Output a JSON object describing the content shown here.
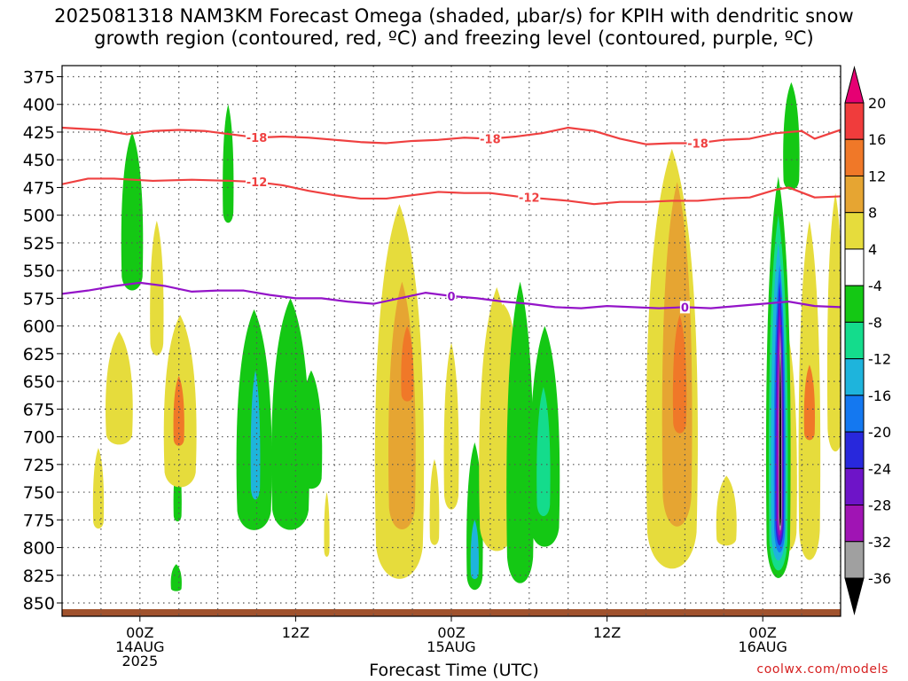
{
  "chart_data": {
    "type": "heatmap",
    "title_line1": "2025081318 NAM3KM Forecast Omega (shaded, μbar/s) for KPIH with dendritic snow",
    "title_line2": "growth region (contoured, red, ºC) and freezing level (contoured, purple, ºC)",
    "xlabel": "Forecast Time (UTC)",
    "credit": "coolwx.com/models",
    "y_ticks": [
      "375",
      "400",
      "425",
      "450",
      "475",
      "500",
      "525",
      "550",
      "575",
      "600",
      "625",
      "650",
      "675",
      "700",
      "725",
      "750",
      "775",
      "800",
      "825",
      "850"
    ],
    "ylim": [
      365,
      862
    ],
    "y_axis": "pressure (hPa)",
    "x_range_hours": [
      -6,
      54
    ],
    "x_ticks": [
      {
        "hour": 0,
        "lines": [
          "00Z",
          "14AUG",
          "2025"
        ]
      },
      {
        "hour": 12,
        "lines": [
          "12Z"
        ]
      },
      {
        "hour": 24,
        "lines": [
          "00Z",
          "15AUG"
        ]
      },
      {
        "hour": 36,
        "lines": [
          "12Z"
        ]
      },
      {
        "hour": 48,
        "lines": [
          "00Z",
          "16AUG"
        ]
      }
    ],
    "colorbar": {
      "labels": [
        "20",
        "16",
        "12",
        "8",
        "4",
        "-4",
        "-8",
        "-12",
        "-16",
        "-20",
        "-24",
        "-28",
        "-32",
        "-36"
      ],
      "colors": [
        "#e60073",
        "#f03c3c",
        "#f07828",
        "#e6a532",
        "#e6dc3c",
        "#ffffff",
        "#14c814",
        "#14dc8c",
        "#1eb4dc",
        "#1478f0",
        "#2828dc",
        "#6e14c8",
        "#a014b4",
        "#a0a0a0",
        "#000000"
      ]
    },
    "contours": {
      "minus18": {
        "label": "-18",
        "color": "#ef4040",
        "points": [
          [
            -6,
            421
          ],
          [
            -3,
            423
          ],
          [
            -1,
            427
          ],
          [
            1,
            424
          ],
          [
            3,
            423
          ],
          [
            5,
            424
          ],
          [
            7,
            427
          ],
          [
            9,
            430
          ],
          [
            11,
            429
          ],
          [
            13,
            430
          ],
          [
            15,
            432
          ],
          [
            17,
            434
          ],
          [
            19,
            435
          ],
          [
            21,
            433
          ],
          [
            23,
            432
          ],
          [
            25,
            430
          ],
          [
            27,
            431
          ],
          [
            29,
            429
          ],
          [
            31,
            426
          ],
          [
            33,
            421
          ],
          [
            35,
            424
          ],
          [
            37,
            431
          ],
          [
            39,
            436
          ],
          [
            41,
            435
          ],
          [
            43,
            435
          ],
          [
            45,
            432
          ],
          [
            47,
            431
          ],
          [
            49,
            426
          ],
          [
            51,
            424
          ],
          [
            52,
            431
          ],
          [
            54,
            423
          ]
        ],
        "label_hours": [
          9,
          27,
          43
        ]
      },
      "minus12": {
        "label": "-12",
        "color": "#ef4040",
        "points": [
          [
            -6,
            472
          ],
          [
            -4,
            467
          ],
          [
            -2,
            467
          ],
          [
            1,
            469
          ],
          [
            4,
            468
          ],
          [
            7,
            469
          ],
          [
            9,
            470
          ],
          [
            11,
            473
          ],
          [
            13,
            478
          ],
          [
            15,
            482
          ],
          [
            17,
            485
          ],
          [
            19,
            485
          ],
          [
            21,
            482
          ],
          [
            23,
            479
          ],
          [
            25,
            480
          ],
          [
            27,
            480
          ],
          [
            29,
            483
          ],
          [
            31,
            485
          ],
          [
            33,
            487
          ],
          [
            35,
            490
          ],
          [
            37,
            488
          ],
          [
            39,
            488
          ],
          [
            41,
            487
          ],
          [
            43,
            487
          ],
          [
            45,
            485
          ],
          [
            47,
            484
          ],
          [
            49,
            477
          ],
          [
            50,
            475
          ],
          [
            52,
            484
          ],
          [
            54,
            483
          ]
        ],
        "label_hours": [
          9,
          30
        ]
      },
      "freezing0": {
        "label": "0",
        "color": "#9414c8",
        "points": [
          [
            -6,
            571
          ],
          [
            -4,
            568
          ],
          [
            -2,
            564
          ],
          [
            0,
            561
          ],
          [
            2,
            564
          ],
          [
            4,
            569
          ],
          [
            6,
            568
          ],
          [
            8,
            568
          ],
          [
            10,
            572
          ],
          [
            12,
            575
          ],
          [
            14,
            575
          ],
          [
            16,
            578
          ],
          [
            18,
            580
          ],
          [
            20,
            575
          ],
          [
            22,
            570
          ],
          [
            24,
            573
          ],
          [
            26,
            575
          ],
          [
            28,
            578
          ],
          [
            30,
            580
          ],
          [
            32,
            583
          ],
          [
            34,
            584
          ],
          [
            36,
            582
          ],
          [
            38,
            583
          ],
          [
            40,
            584
          ],
          [
            42,
            583
          ],
          [
            44,
            584
          ],
          [
            46,
            582
          ],
          [
            48,
            580
          ],
          [
            50,
            578
          ],
          [
            52,
            582
          ],
          [
            54,
            583
          ]
        ],
        "label_hours": [
          24,
          42
        ]
      }
    },
    "regions": [
      {
        "color": "#14c814",
        "hour": -0.6,
        "top": 425,
        "bottom": 572,
        "width": 1.6
      },
      {
        "color": "#14c814",
        "hour": 6.8,
        "top": 400,
        "bottom": 510,
        "width": 0.8
      },
      {
        "color": "#14c814",
        "hour": 8.8,
        "top": 585,
        "bottom": 790,
        "width": 2.6
      },
      {
        "color": "#1eb4dc",
        "hour": 8.9,
        "top": 640,
        "bottom": 760,
        "width": 0.7
      },
      {
        "color": "#14c814",
        "hour": 11.6,
        "top": 575,
        "bottom": 790,
        "width": 2.8
      },
      {
        "color": "#14c814",
        "hour": 13.2,
        "top": 640,
        "bottom": 750,
        "width": 1.6
      },
      {
        "color": "#14c814",
        "hour": 2.9,
        "top": 720,
        "bottom": 778,
        "width": 0.6
      },
      {
        "color": "#14c814",
        "hour": 2.8,
        "top": 815,
        "bottom": 840,
        "width": 0.8
      },
      {
        "color": "#e6dc3c",
        "hour": -3.2,
        "top": 710,
        "bottom": 785,
        "width": 0.8
      },
      {
        "color": "#e6dc3c",
        "hour": -1.6,
        "top": 605,
        "bottom": 710,
        "width": 2.0
      },
      {
        "color": "#e6dc3c",
        "hour": 1.3,
        "top": 505,
        "bottom": 630,
        "width": 1.0
      },
      {
        "color": "#e6dc3c",
        "hour": 3.1,
        "top": 590,
        "bottom": 750,
        "width": 2.4
      },
      {
        "color": "#f07828",
        "hour": 3.0,
        "top": 645,
        "bottom": 710,
        "width": 0.8
      },
      {
        "color": "#e6dc3c",
        "hour": 14.4,
        "top": 750,
        "bottom": 810,
        "width": 0.4
      },
      {
        "color": "#e6dc3c",
        "hour": 20.0,
        "top": 490,
        "bottom": 838,
        "width": 3.6
      },
      {
        "color": "#e6a532",
        "hour": 20.2,
        "top": 560,
        "bottom": 790,
        "width": 2.0
      },
      {
        "color": "#f07828",
        "hour": 20.6,
        "top": 600,
        "bottom": 670,
        "width": 0.9
      },
      {
        "color": "#e6dc3c",
        "hour": 22.7,
        "top": 720,
        "bottom": 800,
        "width": 0.7
      },
      {
        "color": "#e6dc3c",
        "hour": 24.0,
        "top": 615,
        "bottom": 770,
        "width": 1.1
      },
      {
        "color": "#14c814",
        "hour": 25.8,
        "top": 705,
        "bottom": 842,
        "width": 1.2
      },
      {
        "color": "#1eb4dc",
        "hour": 25.8,
        "top": 775,
        "bottom": 830,
        "width": 0.6
      },
      {
        "color": "#e6dc3c",
        "hour": 27.5,
        "top": 565,
        "bottom": 810,
        "width": 2.6
      },
      {
        "color": "#e6dc3c",
        "hour": 28.0,
        "top": 580,
        "bottom": 640,
        "width": 1.6
      },
      {
        "color": "#14c814",
        "hour": 29.3,
        "top": 560,
        "bottom": 840,
        "width": 2.0
      },
      {
        "color": "#14c814",
        "hour": 31.2,
        "top": 600,
        "bottom": 805,
        "width": 2.2
      },
      {
        "color": "#14dc8c",
        "hour": 31.1,
        "top": 655,
        "bottom": 775,
        "width": 1.0
      },
      {
        "color": "#e6dc3c",
        "hour": 41.0,
        "top": 440,
        "bottom": 830,
        "width": 3.8
      },
      {
        "color": "#e6a532",
        "hour": 41.4,
        "top": 470,
        "bottom": 790,
        "width": 2.2
      },
      {
        "color": "#f07828",
        "hour": 41.6,
        "top": 590,
        "bottom": 700,
        "width": 1.0
      },
      {
        "color": "#e6dc3c",
        "hour": 45.2,
        "top": 735,
        "bottom": 800,
        "width": 1.5
      },
      {
        "color": "#e6dc3c",
        "hour": 49.8,
        "top": 600,
        "bottom": 810,
        "width": 1.6
      },
      {
        "color": "#e6dc3c",
        "hour": 53.6,
        "top": 480,
        "bottom": 720,
        "width": 1.2
      },
      {
        "color": "#e6dc3c",
        "hour": 51.6,
        "top": 505,
        "bottom": 820,
        "width": 1.6
      },
      {
        "color": "#f07828",
        "hour": 51.6,
        "top": 635,
        "bottom": 705,
        "width": 0.8
      },
      {
        "color": "#14c814",
        "hour": 50.2,
        "top": 380,
        "bottom": 480,
        "width": 1.2
      },
      {
        "color": "#14c814",
        "hour": 49.2,
        "top": 465,
        "bottom": 838,
        "width": 1.8
      },
      {
        "color": "#14dc8c",
        "hour": 49.2,
        "top": 500,
        "bottom": 830,
        "width": 1.4
      },
      {
        "color": "#1eb4dc",
        "hour": 49.2,
        "top": 525,
        "bottom": 820,
        "width": 1.1
      },
      {
        "color": "#1478f0",
        "hour": 49.3,
        "top": 545,
        "bottom": 812,
        "width": 0.85
      },
      {
        "color": "#2828dc",
        "hour": 49.3,
        "top": 560,
        "bottom": 805,
        "width": 0.65
      },
      {
        "color": "#6e14c8",
        "hour": 49.3,
        "top": 575,
        "bottom": 800,
        "width": 0.5
      },
      {
        "color": "#a014b4",
        "hour": 49.3,
        "top": 590,
        "bottom": 795,
        "width": 0.38
      },
      {
        "color": "#a0a0a0",
        "hour": 49.35,
        "top": 605,
        "bottom": 790,
        "width": 0.25
      },
      {
        "color": "#000000",
        "hour": 49.35,
        "top": 625,
        "bottom": 785,
        "width": 0.14
      }
    ]
  }
}
